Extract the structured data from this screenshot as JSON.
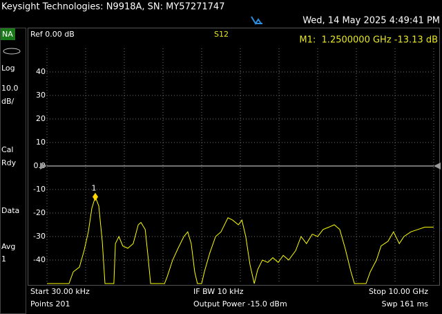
{
  "header": {
    "title": "Keysight Technologies: N9918A, SN: MY57271747",
    "datetime": "Wed, 14 May 2025 4:49:41 PM"
  },
  "sidebar": {
    "mode": "NA",
    "items": [
      "Log",
      "10.0",
      "dB/",
      "Cal",
      "Rdy",
      "Data",
      "Avg",
      "1"
    ]
  },
  "chart_data": {
    "type": "line",
    "ref_label": "Ref 0.00 dB",
    "title": "S12",
    "marker_readout": "M1:  1.2500000 GHz -13.13 dB",
    "reference_level": 0,
    "x": [
      3e-05,
      0.57,
      0.68,
      0.84,
      0.96,
      1.07,
      1.16,
      1.25,
      1.34,
      1.43,
      1.5,
      1.73,
      1.77,
      1.86,
      1.96,
      2.09,
      2.23,
      2.36,
      2.43,
      2.54,
      2.61,
      2.68,
      3.04,
      3.11,
      3.25,
      3.39,
      3.54,
      3.64,
      3.73,
      3.82,
      3.89,
      4.0,
      4.07,
      4.21,
      4.36,
      4.5,
      4.68,
      4.8,
      4.95,
      5.04,
      5.14,
      5.25,
      5.36,
      5.45,
      5.57,
      5.71,
      5.84,
      5.98,
      6.11,
      6.25,
      6.43,
      6.57,
      6.71,
      6.86,
      7.0,
      7.14,
      7.29,
      7.43,
      7.57,
      7.71,
      7.86,
      7.95,
      8.25,
      8.36,
      8.52,
      8.64,
      8.82,
      8.96,
      9.11,
      9.23,
      9.41,
      9.59,
      9.77,
      10
    ],
    "values": [
      -50,
      -50,
      -45,
      -43,
      -36,
      -28,
      -18,
      -13.13,
      -17,
      -32,
      -50,
      -50,
      -33,
      -30,
      -34,
      -35,
      -33,
      -25,
      -24,
      -27,
      -38,
      -50,
      -50,
      -47,
      -40,
      -35,
      -30,
      -28,
      -33,
      -45,
      -50,
      -50,
      -45,
      -37,
      -30,
      -28,
      -22,
      -23,
      -25,
      -23,
      -30,
      -42,
      -50,
      -44,
      -40,
      -41,
      -39,
      -41,
      -38,
      -40,
      -36,
      -30,
      -33,
      -29,
      -30,
      -27,
      -26,
      -25,
      -27,
      -35,
      -45,
      -50,
      -50,
      -45,
      -40,
      -34,
      -32,
      -28,
      -33,
      -30,
      -28,
      -27,
      -26,
      -26
    ],
    "color": "#ffff00",
    "markers": [
      {
        "label": "1",
        "x": 1.25,
        "value": -13.13,
        "color": "#ffd400"
      }
    ],
    "xlim": [
      3e-05,
      10
    ],
    "ylim": [
      -50,
      50
    ],
    "yticks": [
      40,
      30,
      20,
      10,
      {
        "value": 0,
        "label": "0.0"
      },
      -10,
      -20,
      -30,
      -40
    ],
    "grid": true
  },
  "footer": {
    "rows": [
      [
        "Start 30.00 kHz",
        "IF BW 10 kHz",
        "Stop 10.00 GHz"
      ],
      [
        "Points 201",
        "Output Power -15.0 dBm",
        "Swp 161 ms"
      ]
    ]
  }
}
